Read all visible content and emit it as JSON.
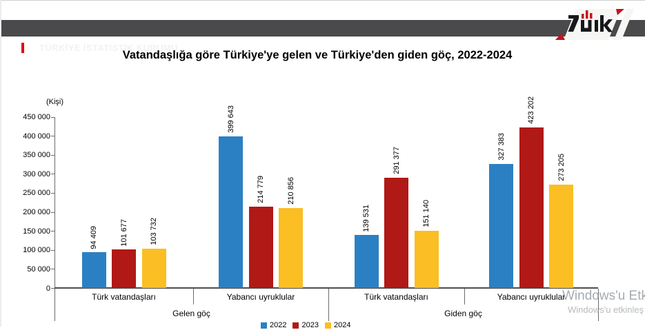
{
  "header": {
    "title": "TÜRKİYE İSTATİSTİK KURUMU",
    "logo": "tuik-logo",
    "bar_color": "#4a4a4c",
    "accent_color": "#e30613"
  },
  "chart_data": {
    "type": "bar",
    "title": "Vatandaşlığa göre Türkiye'ye gelen ve Türkiye'den giden göç, 2022-2024",
    "unit_label": "(Kişi)",
    "ylim": [
      0,
      450000
    ],
    "ytick_step": 50000,
    "ytick_labels": [
      "0",
      "50 000",
      "100 000",
      "150 000",
      "200 000",
      "250 000",
      "300 000",
      "350 000",
      "400 000",
      "450 000"
    ],
    "grid": false,
    "legend_position": "bottom",
    "group_labels": [
      "Gelen göç",
      "Giden göç"
    ],
    "categories": [
      "Türk vatandaşları",
      "Yabancı uyruklular",
      "Türk vatandaşları",
      "Yabancı uyruklular"
    ],
    "series": [
      {
        "name": "2022",
        "color": "#2b80c4",
        "values": [
          94409,
          399643,
          139531,
          327383
        ],
        "labels": [
          "94 409",
          "399 643",
          "139 531",
          "327 383"
        ]
      },
      {
        "name": "2023",
        "color": "#b01916",
        "values": [
          101677,
          214779,
          291377,
          423202
        ],
        "labels": [
          "101 677",
          "214 779",
          "291 377",
          "423 202"
        ]
      },
      {
        "name": "2024",
        "color": "#fbbe23",
        "values": [
          103732,
          210856,
          151140,
          273205
        ],
        "labels": [
          "103 732",
          "210 856",
          "151 140",
          "273 205"
        ]
      }
    ],
    "legend": [
      "2022",
      "2023",
      "2024"
    ]
  },
  "watermark": {
    "line1": "Windows'u Etk",
    "line2": "Windows'u etkinleş"
  },
  "colors": {
    "axis": "#6b6b6b",
    "baseline": "#4d4d4d"
  }
}
